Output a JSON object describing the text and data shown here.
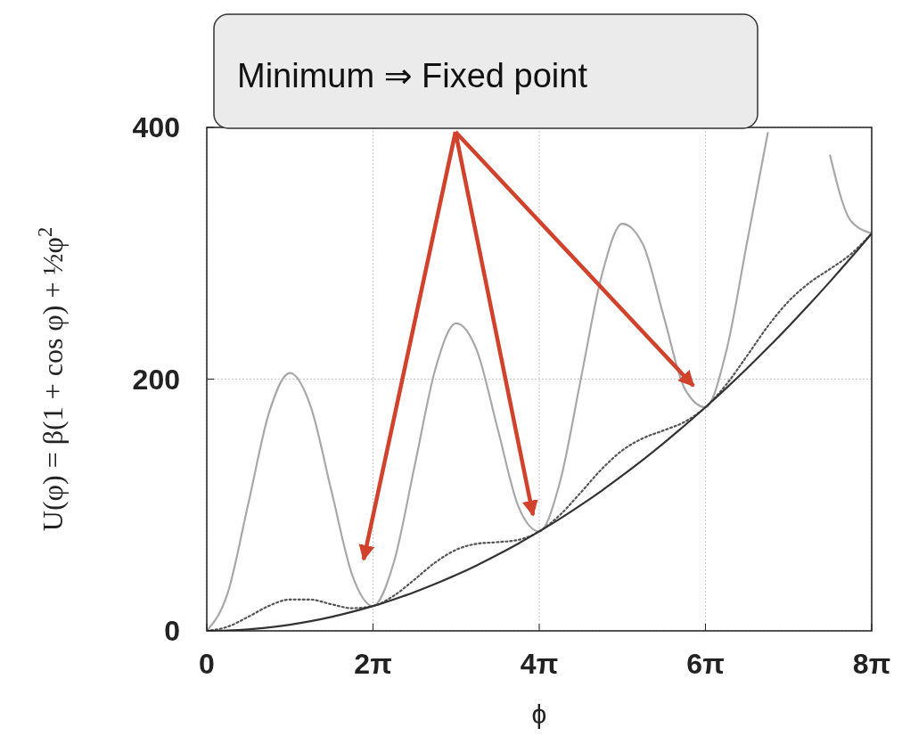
{
  "chart_data": {
    "type": "line",
    "xlabel": "ϕ",
    "ylabel": "U(φ) = β(1 + cos φ) + ½φ$^{2}$",
    "annotations": [
      "Minimum ⇒ Fixed point"
    ],
    "x": [
      0,
      0.785,
      1.571,
      2.356,
      3.142,
      3.927,
      4.712,
      5.498,
      6.283,
      7.069,
      7.854,
      8.639,
      9.425,
      10.21,
      10.996,
      11.781,
      12.566,
      13.352,
      14.137,
      14.923,
      15.708,
      16.493,
      17.279,
      18.064,
      18.85,
      19.635,
      20.42,
      21.206,
      21.991,
      22.777,
      23.562,
      24.347,
      25.133
    ],
    "series": [
      {
        "color": "#a8a8a8",
        "line_style": "solid",
        "values": [
          0,
          29.6,
          101.2,
          173.5,
          204.9,
          178.4,
          111.1,
          44.4,
          19.7,
          54.3,
          130.8,
          208.0,
          244.4,
          222.8,
          160.5,
          98.7,
          79.0,
          118.4,
          199.9,
          282.0,
          323.4,
          306.7,
          249.3,
          192.5,
          177.7,
          222.1,
          308.5,
          395.6,
          null,
          null,
          377.6,
          325.7,
          315.8
        ]
      },
      {
        "color": "#555555",
        "line_style": "dotted",
        "values": [
          0,
          3.2,
          11.2,
          19.9,
          24.9,
          24.8,
          21.1,
          18.0,
          19.7,
          27.9,
          40.8,
          54.4,
          64.4,
          69.2,
          70.5,
          72.3,
          79.0,
          92.1,
          109.9,
          128.4,
          143.4,
          153.1,
          159.3,
          166.1,
          177.7,
          195.7,
          218.5,
          242.0,
          261.8,
          276.5,
          287.6,
          299.3,
          315.8
        ]
      },
      {
        "color": "#333333",
        "line_style": "solid",
        "values": [
          0,
          0.3,
          1.2,
          2.8,
          4.9,
          7.7,
          11.1,
          15.1,
          19.7,
          25.0,
          30.8,
          37.3,
          44.4,
          52.1,
          60.5,
          69.4,
          79.0,
          89.1,
          99.9,
          111.3,
          123.4,
          136.0,
          149.3,
          163.2,
          177.7,
          192.8,
          208.5,
          224.9,
          241.8,
          259.4,
          277.6,
          296.4,
          315.8
        ]
      }
    ],
    "xlim": [
      0,
      25.133
    ],
    "xticks": [
      0,
      {
        "value": 6.283,
        "label": "2π"
      },
      {
        "value": 12.566,
        "label": "4π"
      },
      {
        "value": 18.85,
        "label": "6π"
      },
      {
        "value": 25.133,
        "label": "8π"
      }
    ],
    "ylim": [
      0,
      400
    ],
    "yticks": [
      0,
      200,
      400
    ],
    "grid": true
  }
}
